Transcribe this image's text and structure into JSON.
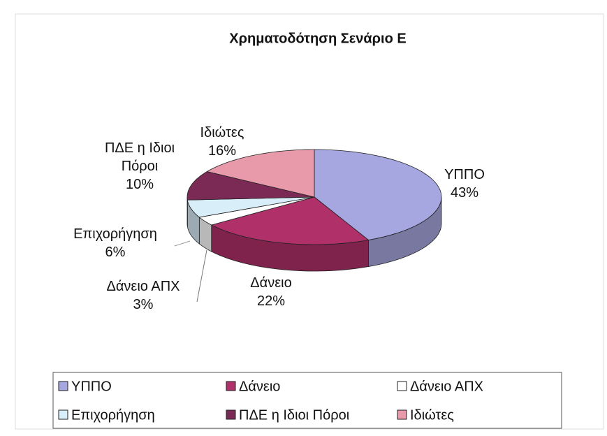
{
  "chart_data": {
    "type": "pie",
    "title": "Χρηματοδότηση Σενάριο Ε",
    "categories": [
      "ΥΠΠΟ",
      "Δάνειο",
      "Δάνειο ΑΠΧ",
      "Επιχορήγηση",
      "ΠΔΕ η Ιδιοι Πόροι",
      "Ιδιώτες"
    ],
    "values": [
      43,
      22,
      3,
      6,
      10,
      16
    ],
    "value_labels": [
      "43%",
      "22%",
      "3%",
      "6%",
      "10%",
      "16%"
    ],
    "colors": [
      "#a6a6e0",
      "#b0306a",
      "#ffffff",
      "#d8eef8",
      "#7a2a55",
      "#e89aaa"
    ],
    "legend": "bottom"
  }
}
